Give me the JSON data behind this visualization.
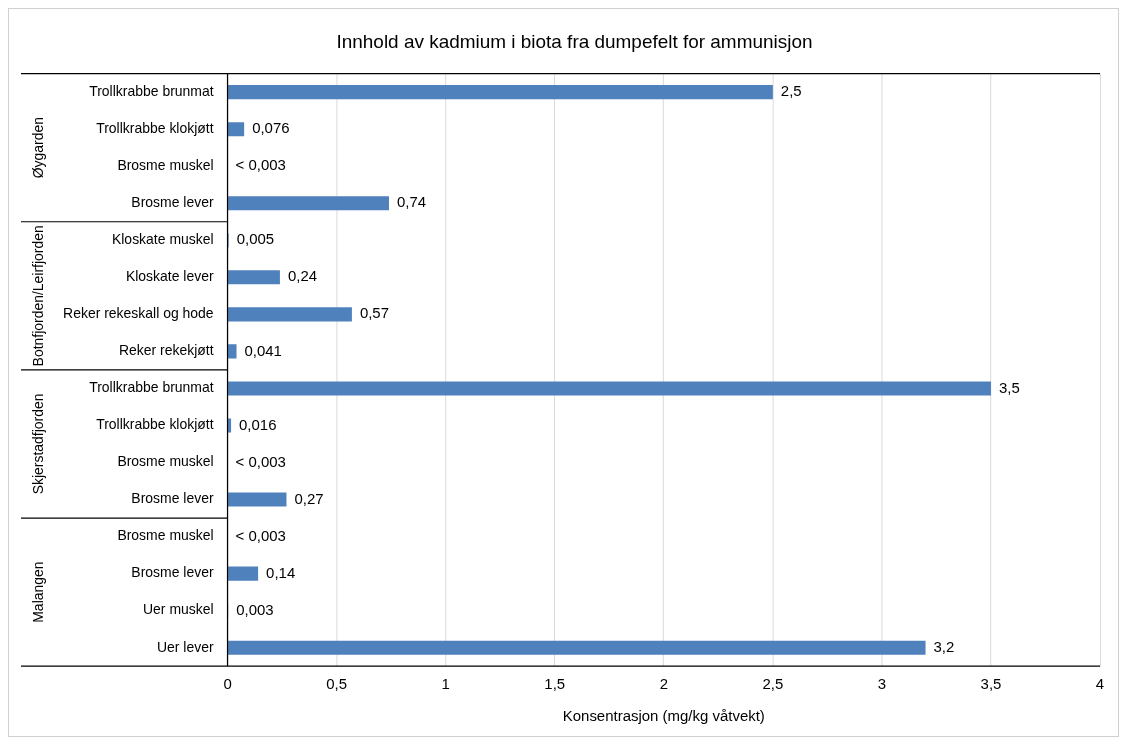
{
  "chart_data": {
    "type": "bar",
    "orientation": "horizontal",
    "title": "Innhold av kadmium i biota fra dumpefelt for ammunisjon",
    "xlabel": "Konsentrasjon (mg/kg våtvekt)",
    "categories": [
      "Trollkrabbe brunmat",
      "Trollkrabbe klokjøtt",
      "Brosme muskel",
      "Brosme lever",
      "Kloskate muskel",
      "Kloskate lever",
      "Reker rekeskall og hode",
      "Reker rekekjøtt",
      "Trollkrabbe brunmat",
      "Trollkrabbe klokjøtt",
      "Brosme muskel",
      "Brosme lever",
      "Brosme muskel",
      "Brosme lever",
      "Uer muskel",
      "Uer lever"
    ],
    "values": [
      2.5,
      0.076,
      null,
      0.74,
      0.005,
      0.24,
      0.57,
      0.041,
      3.5,
      0.016,
      null,
      0.27,
      null,
      0.14,
      0.003,
      3.2
    ],
    "value_labels": [
      "2,5",
      "0,076",
      "< 0,003",
      "0,74",
      "0,005",
      "0,24",
      "0,57",
      "0,041",
      "3,5",
      "0,016",
      "< 0,003",
      "0,27",
      "< 0,003",
      "0,14",
      "0,003",
      "3,2"
    ],
    "color": "#4f81bd",
    "xlim": [
      0,
      4
    ],
    "xticks": [
      0,
      {
        "value": 0.5,
        "label": "0,5"
      },
      1,
      {
        "value": 1.5,
        "label": "1,5"
      },
      2,
      {
        "value": 2.5,
        "label": "2,5"
      },
      3,
      {
        "value": 3.5,
        "label": "3,5"
      },
      4
    ],
    "annotations": [
      "Øygarden",
      "Botnfjorden/Leirfjorden",
      "Skjerstadfjorden",
      "Malangen"
    ],
    "grid": "x",
    "legend": false
  }
}
